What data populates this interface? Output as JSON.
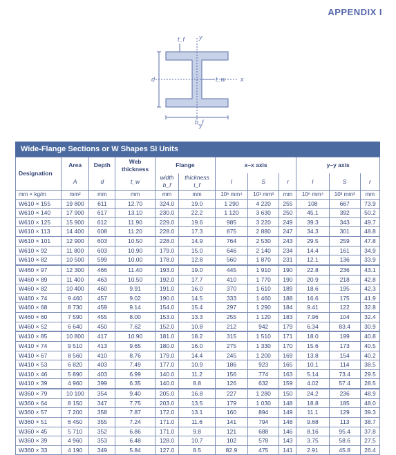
{
  "appendix_label": "APPENDIX I",
  "diagram": {
    "labels": {
      "tf": "t_f",
      "y": "y",
      "x": "x",
      "d": "d",
      "tw": "t_w",
      "bf": "b_f"
    },
    "stroke": "#5a6ea8",
    "fill": "#c7d2e8"
  },
  "table": {
    "title": "Wide-Flange Sections or W Shapes SI Units",
    "header": {
      "designation": "Designation",
      "area": "Area",
      "area_sym": "A",
      "depth": "Depth",
      "depth_sym": "d",
      "web": "Web",
      "web_thk": "thickness",
      "web_sym": "t_w",
      "flange": "Flange",
      "fw": "width",
      "fw_sym": "b_f",
      "ft": "thickness",
      "ft_sym": "t_f",
      "xx": "x–x axis",
      "yy": "y–y axis",
      "I": "I",
      "S": "S",
      "r": "r"
    },
    "units": {
      "des": "mm × kg/m",
      "area": "mm²",
      "depth": "mm",
      "web": "mm",
      "fw": "mm",
      "ft": "mm",
      "Ix": "10⁶ mm⁴",
      "Sx": "10³ mm³",
      "rx": "mm",
      "Iy": "10⁶ mm⁴",
      "Sy": "10³ mm³",
      "ry": "mm"
    },
    "groups": [
      [
        [
          "W610 × 155",
          "19 800",
          "611",
          "12.70",
          "324.0",
          "19.0",
          "1 290",
          "4 220",
          "255",
          "108",
          "667",
          "73.9"
        ],
        [
          "W610 × 140",
          "17 900",
          "617",
          "13.10",
          "230.0",
          "22.2",
          "1 120",
          "3 630",
          "250",
          "45.1",
          "392",
          "50.2"
        ],
        [
          "W610 × 125",
          "15 900",
          "612",
          "11.90",
          "229.0",
          "19.6",
          "985",
          "3 220",
          "249",
          "39.3",
          "343",
          "49.7"
        ],
        [
          "W610 × 113",
          "14 400",
          "608",
          "11.20",
          "228.0",
          "17.3",
          "875",
          "2 880",
          "247",
          "34.3",
          "301",
          "48.8"
        ],
        [
          "W610 × 101",
          "12 900",
          "603",
          "10.50",
          "228.0",
          "14.9",
          "764",
          "2 530",
          "243",
          "29.5",
          "259",
          "47.8"
        ],
        [
          "W610 × 92",
          "11 800",
          "603",
          "10.90",
          "179.0",
          "15.0",
          "646",
          "2 140",
          "234",
          "14.4",
          "161",
          "34.9"
        ],
        [
          "W610 × 82",
          "10 500",
          "599",
          "10.00",
          "178.0",
          "12.8",
          "560",
          "1 870",
          "231",
          "12.1",
          "136",
          "33.9"
        ]
      ],
      [
        [
          "W460 × 97",
          "12 300",
          "466",
          "11.40",
          "193.0",
          "19.0",
          "445",
          "1 910",
          "190",
          "22.8",
          "236",
          "43.1"
        ],
        [
          "W460 × 89",
          "11 400",
          "463",
          "10.50",
          "192.0",
          "17.7",
          "410",
          "1 770",
          "190",
          "20.9",
          "218",
          "42.8"
        ],
        [
          "W460 × 82",
          "10 400",
          "460",
          "9.91",
          "191.0",
          "16.0",
          "370",
          "1 610",
          "189",
          "18.6",
          "195",
          "42.3"
        ],
        [
          "W460 × 74",
          "9 460",
          "457",
          "9.02",
          "190.0",
          "14.5",
          "333",
          "1 460",
          "188",
          "16.6",
          "175",
          "41.9"
        ],
        [
          "W460 × 68",
          "8 730",
          "459",
          "9.14",
          "154.0",
          "15.4",
          "297",
          "1 290",
          "184",
          "9.41",
          "122",
          "32.8"
        ],
        [
          "W460 × 60",
          "7 590",
          "455",
          "8.00",
          "153.0",
          "13.3",
          "255",
          "1 120",
          "183",
          "7.96",
          "104",
          "32.4"
        ],
        [
          "W460 × 52",
          "6 640",
          "450",
          "7.62",
          "152.0",
          "10.8",
          "212",
          "942",
          "179",
          "6.34",
          "83.4",
          "30.9"
        ]
      ],
      [
        [
          "W410 × 85",
          "10 800",
          "417",
          "10.90",
          "181.0",
          "18.2",
          "315",
          "1 510",
          "171",
          "18.0",
          "199",
          "40.8"
        ],
        [
          "W410 × 74",
          "9 510",
          "413",
          "9.65",
          "180.0",
          "16.0",
          "275",
          "1 330",
          "170",
          "15.6",
          "173",
          "40.5"
        ],
        [
          "W410 × 67",
          "8 560",
          "410",
          "8.76",
          "179.0",
          "14.4",
          "245",
          "1 200",
          "169",
          "13.8",
          "154",
          "40.2"
        ],
        [
          "W410 × 53",
          "6 820",
          "403",
          "7.49",
          "177.0",
          "10.9",
          "186",
          "923",
          "165",
          "10.1",
          "114",
          "38.5"
        ],
        [
          "W410 × 46",
          "5 890",
          "403",
          "6.99",
          "140.0",
          "11.2",
          "156",
          "774",
          "163",
          "5.14",
          "73.4",
          "29.5"
        ],
        [
          "W410 × 39",
          "4 960",
          "399",
          "6.35",
          "140.0",
          "8.8",
          "126",
          "632",
          "159",
          "4.02",
          "57.4",
          "28.5"
        ]
      ],
      [
        [
          "W360 × 79",
          "10 100",
          "354",
          "9.40",
          "205.0",
          "16.8",
          "227",
          "1 280",
          "150",
          "24.2",
          "236",
          "48.9"
        ],
        [
          "W360 × 64",
          "8 150",
          "347",
          "7.75",
          "203.0",
          "13.5",
          "179",
          "1 030",
          "148",
          "18.8",
          "185",
          "48.0"
        ],
        [
          "W360 × 57",
          "7 200",
          "358",
          "7.87",
          "172.0",
          "13.1",
          "160",
          "894",
          "149",
          "11.1",
          "129",
          "39.3"
        ],
        [
          "W360 × 51",
          "6 450",
          "355",
          "7.24",
          "171.0",
          "11.6",
          "141",
          "794",
          "148",
          "9.68",
          "113",
          "38.7"
        ],
        [
          "W360 × 45",
          "5 710",
          "352",
          "6.86",
          "171.0",
          "9.8",
          "121",
          "688",
          "146",
          "8.16",
          "95.4",
          "37.8"
        ],
        [
          "W360 × 39",
          "4 960",
          "353",
          "6.48",
          "128.0",
          "10.7",
          "102",
          "578",
          "143",
          "3.75",
          "58.6",
          "27.5"
        ],
        [
          "W360 × 33",
          "4 190",
          "349",
          "5.84",
          "127.0",
          "8.5",
          "82.9",
          "475",
          "141",
          "2.91",
          "45.8",
          "26.4"
        ]
      ]
    ]
  }
}
